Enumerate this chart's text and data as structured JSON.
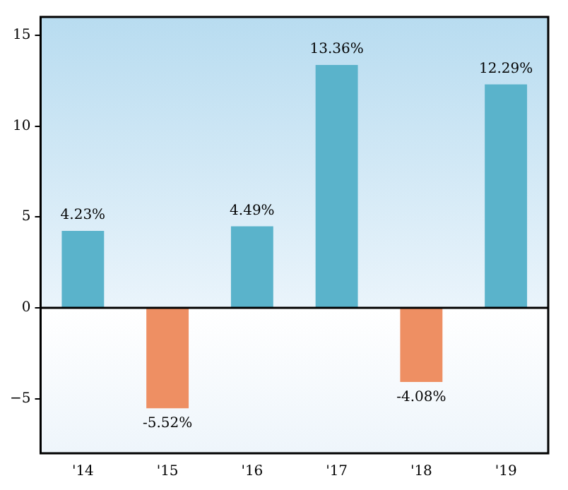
{
  "chart_data": {
    "type": "bar",
    "categories": [
      "'14",
      "'15",
      "'16",
      "'17",
      "'18",
      "'19"
    ],
    "values": [
      4.23,
      -5.52,
      4.49,
      13.36,
      -4.08,
      12.29
    ],
    "colors": [
      "#5ab3cb",
      "#ee8f63",
      "#5ab3cb",
      "#5ab3cb",
      "#ee8f63",
      "#5ab3cb"
    ],
    "value_labels": [
      "4.23%",
      "-5.52%",
      "4.49%",
      "13.36%",
      "-4.08%",
      "12.29%"
    ],
    "ylim": [
      -8,
      16
    ],
    "yticks": [
      {
        "value": -5,
        "label": "−5"
      },
      0,
      5,
      10,
      15
    ],
    "ref_lines": [
      {
        "axis": "y",
        "value": 0,
        "color": "#000000"
      }
    ],
    "grid": false,
    "legend": false
  }
}
